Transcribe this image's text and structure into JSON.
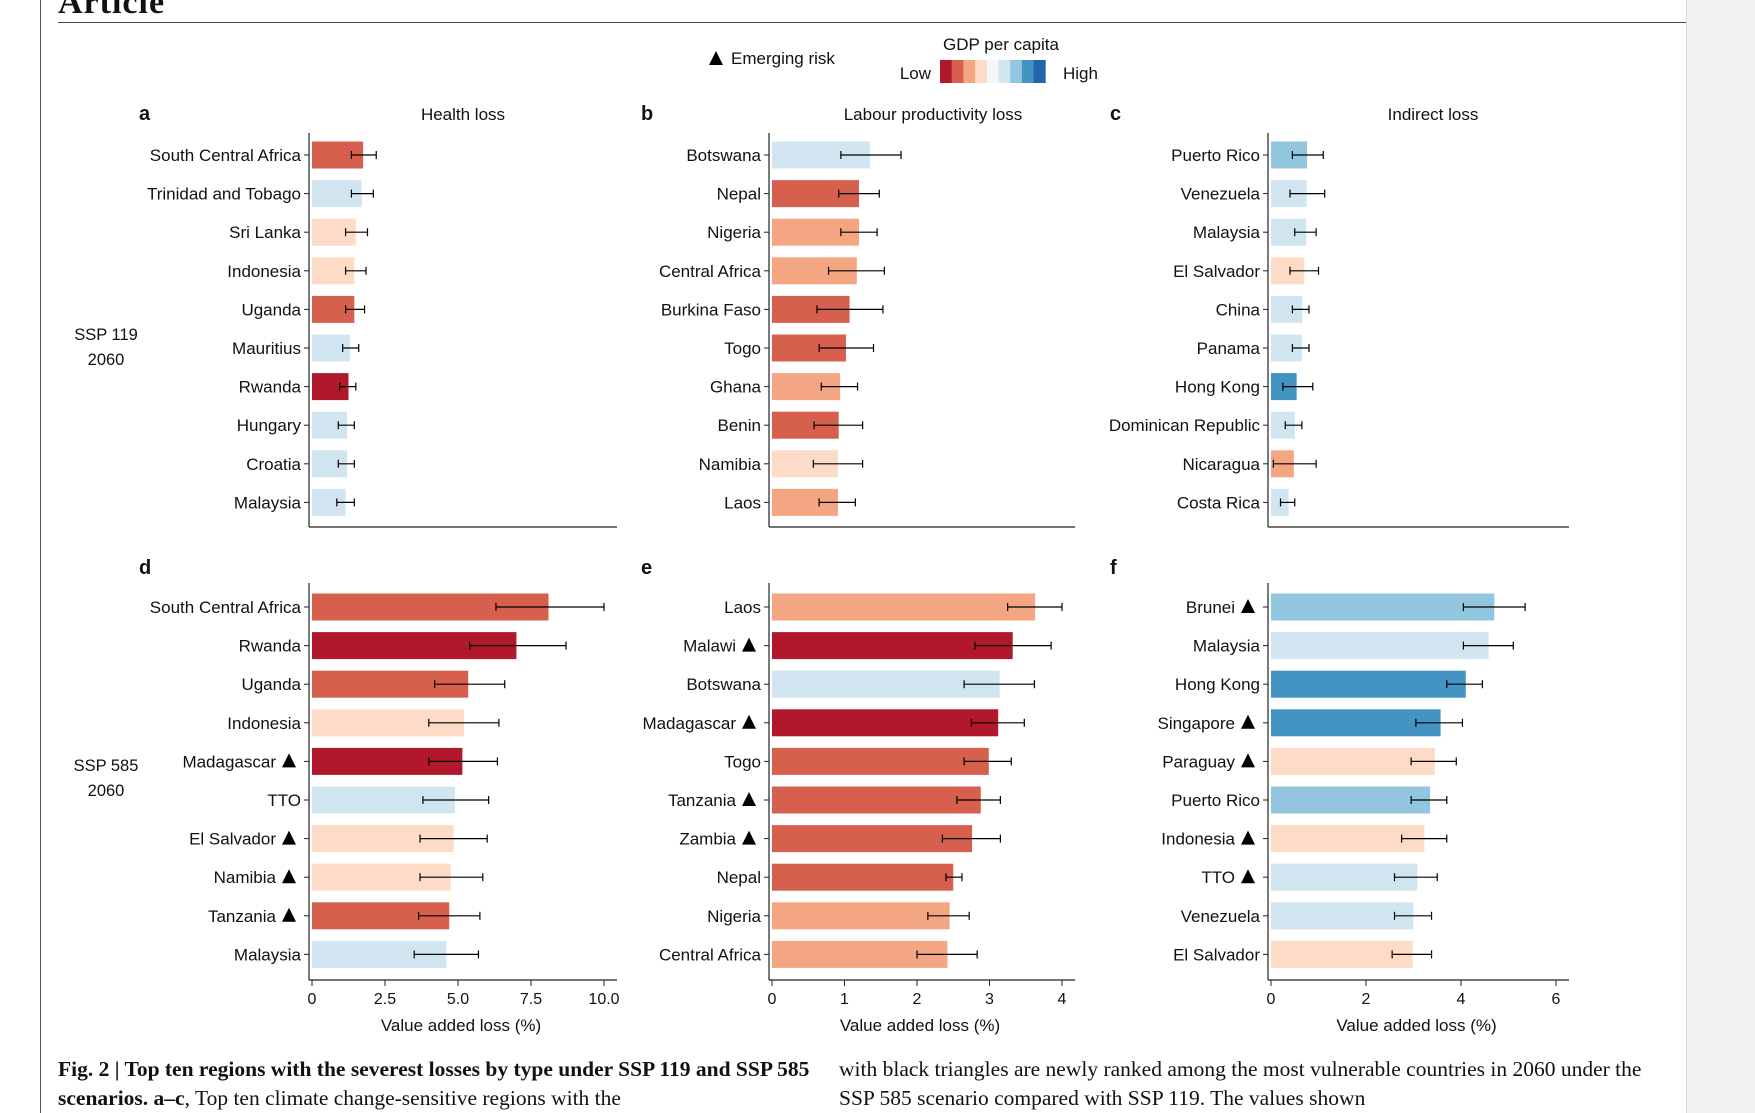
{
  "header": {
    "title": "Article"
  },
  "legend": {
    "triangle_label": "Emerging risk",
    "gdp_title": "GDP per capita",
    "low_label": "Low",
    "high_label": "High",
    "colors": [
      "#b2182b",
      "#d6604d",
      "#f4a582",
      "#fddbc7",
      "#f7f7f7",
      "#d1e5f0",
      "#92c5de",
      "#4393c3",
      "#2166ac"
    ]
  },
  "scenario_labels": {
    "top": [
      "SSP 119",
      "2060"
    ],
    "bottom": [
      "SSP 585",
      "2060"
    ]
  },
  "chart_data": [
    {
      "type": "bar",
      "orientation": "horizontal",
      "panel": "a",
      "title": "Health loss",
      "categories": [
        "South Central Africa",
        "Trinidad and Tobago",
        "Sri Lanka",
        "Indonesia",
        "Uganda",
        "Mauritius",
        "Rwanda",
        "Hungary",
        "Croatia",
        "Malaysia"
      ],
      "values": [
        1.75,
        1.7,
        1.5,
        1.45,
        1.45,
        1.3,
        1.25,
        1.2,
        1.2,
        1.15
      ],
      "error_low": [
        1.35,
        1.35,
        1.15,
        1.15,
        1.15,
        1.05,
        0.95,
        0.9,
        0.9,
        0.85
      ],
      "error_high": [
        2.2,
        2.1,
        1.9,
        1.85,
        1.8,
        1.6,
        1.5,
        1.45,
        1.45,
        1.45
      ],
      "color_index": [
        1,
        5,
        3,
        3,
        1,
        5,
        0,
        5,
        5,
        5
      ],
      "emerging": [
        false,
        false,
        false,
        false,
        false,
        false,
        false,
        false,
        false,
        false
      ],
      "xlim": [
        0,
        10
      ]
    },
    {
      "type": "bar",
      "orientation": "horizontal",
      "panel": "b",
      "title": "Labour productivity loss",
      "categories": [
        "Botswana",
        "Nepal",
        "Nigeria",
        "Central Africa",
        "Burkina Faso",
        "Togo",
        "Ghana",
        "Benin",
        "Namibia",
        "Laos"
      ],
      "values": [
        1.35,
        1.2,
        1.2,
        1.17,
        1.07,
        1.02,
        0.94,
        0.92,
        0.91,
        0.91
      ],
      "error_low": [
        0.95,
        0.92,
        0.95,
        0.78,
        0.62,
        0.65,
        0.68,
        0.58,
        0.57,
        0.65
      ],
      "error_high": [
        1.78,
        1.48,
        1.45,
        1.55,
        1.53,
        1.4,
        1.18,
        1.25,
        1.25,
        1.15
      ],
      "color_index": [
        5,
        1,
        2,
        2,
        1,
        1,
        2,
        1,
        3,
        2
      ],
      "emerging": [
        false,
        false,
        false,
        false,
        false,
        false,
        false,
        false,
        false,
        false
      ],
      "xlim": [
        0,
        4
      ]
    },
    {
      "type": "bar",
      "orientation": "horizontal",
      "panel": "c",
      "title": "Indirect loss",
      "categories": [
        "Puerto Rico",
        "Venezuela",
        "Malaysia",
        "El Salvador",
        "China",
        "Panama",
        "Hong Kong",
        "Dominican Republic",
        "Nicaragua",
        "Costa Rica"
      ],
      "values": [
        0.76,
        0.75,
        0.74,
        0.7,
        0.66,
        0.65,
        0.54,
        0.5,
        0.48,
        0.37
      ],
      "error_low": [
        0.45,
        0.4,
        0.5,
        0.4,
        0.45,
        0.45,
        0.25,
        0.3,
        0.05,
        0.2
      ],
      "error_high": [
        1.1,
        1.13,
        0.95,
        1.0,
        0.8,
        0.8,
        0.88,
        0.65,
        0.95,
        0.5
      ],
      "color_index": [
        6,
        5,
        5,
        3,
        5,
        5,
        7,
        5,
        2,
        5
      ],
      "emerging": [
        false,
        false,
        false,
        false,
        false,
        false,
        false,
        false,
        false,
        false
      ],
      "xlim": [
        0,
        6
      ]
    },
    {
      "type": "bar",
      "orientation": "horizontal",
      "panel": "d",
      "title": "",
      "categories": [
        "South Central Africa",
        "Rwanda",
        "Uganda",
        "Indonesia",
        "Madagascar",
        "TTO",
        "El Salvador",
        "Namibia",
        "Tanzania",
        "Malaysia"
      ],
      "values": [
        8.1,
        7.0,
        5.35,
        5.2,
        5.15,
        4.9,
        4.85,
        4.75,
        4.7,
        4.6
      ],
      "error_low": [
        6.3,
        5.4,
        4.2,
        4.0,
        4.0,
        3.8,
        3.7,
        3.7,
        3.65,
        3.5
      ],
      "error_high": [
        10.0,
        8.7,
        6.6,
        6.4,
        6.35,
        6.05,
        6.0,
        5.85,
        5.75,
        5.7
      ],
      "color_index": [
        1,
        0,
        1,
        3,
        0,
        5,
        3,
        3,
        1,
        5
      ],
      "emerging": [
        false,
        false,
        false,
        false,
        true,
        false,
        true,
        true,
        true,
        false
      ],
      "xlim": [
        0,
        10
      ],
      "xticks": [
        "0",
        "2.5",
        "5.0",
        "7.5",
        "10.0"
      ],
      "xlabel": "Value added loss (%)"
    },
    {
      "type": "bar",
      "orientation": "horizontal",
      "panel": "e",
      "title": "",
      "categories": [
        "Laos",
        "Malawi",
        "Botswana",
        "Madagascar",
        "Togo",
        "Tanzania",
        "Zambia",
        "Nepal",
        "Nigeria",
        "Central Africa"
      ],
      "values": [
        3.63,
        3.32,
        3.14,
        3.12,
        2.99,
        2.88,
        2.76,
        2.5,
        2.45,
        2.42
      ],
      "error_low": [
        3.25,
        2.8,
        2.65,
        2.75,
        2.65,
        2.55,
        2.35,
        2.4,
        2.15,
        2.0
      ],
      "error_high": [
        4.0,
        3.85,
        3.62,
        3.48,
        3.3,
        3.15,
        3.15,
        2.62,
        2.72,
        2.83
      ],
      "color_index": [
        2,
        0,
        5,
        0,
        1,
        1,
        1,
        1,
        2,
        2
      ],
      "emerging": [
        false,
        true,
        false,
        true,
        false,
        true,
        true,
        false,
        false,
        false
      ],
      "xlim": [
        0,
        4
      ],
      "xticks": [
        "0",
        "1",
        "2",
        "3",
        "4"
      ],
      "xlabel": "Value added loss (%)"
    },
    {
      "type": "bar",
      "orientation": "horizontal",
      "panel": "f",
      "title": "",
      "categories": [
        "Brunei",
        "Malaysia",
        "Hong Kong",
        "Singapore",
        "Paraguay",
        "Puerto Rico",
        "Indonesia",
        "TTO",
        "Venezuela",
        "El Salvador"
      ],
      "values": [
        4.7,
        4.58,
        4.1,
        3.57,
        3.45,
        3.35,
        3.23,
        3.08,
        3.0,
        2.98
      ],
      "error_low": [
        4.05,
        4.05,
        3.7,
        3.05,
        2.95,
        2.95,
        2.75,
        2.6,
        2.6,
        2.55
      ],
      "error_high": [
        5.35,
        5.1,
        4.45,
        4.03,
        3.9,
        3.7,
        3.7,
        3.5,
        3.38,
        3.38
      ],
      "color_index": [
        6,
        5,
        7,
        7,
        3,
        6,
        3,
        5,
        5,
        3
      ],
      "emerging": [
        true,
        false,
        false,
        true,
        true,
        false,
        true,
        true,
        false,
        false
      ],
      "xlim": [
        0,
        6
      ],
      "xticks": [
        "0",
        "2",
        "4",
        "6"
      ],
      "xlabel": "Value added loss (%)"
    }
  ],
  "caption": {
    "left_bold": "Fig. 2 | Top ten regions with the severest losses by type under SSP 119 and SSP 585 scenarios. a–c",
    "left_rest": ", Top ten climate change-sensitive regions with the",
    "right": "with black triangles are newly ranked among the most vulnerable countries in 2060 under the SSP 585 scenario compared with SSP 119. The values shown"
  }
}
